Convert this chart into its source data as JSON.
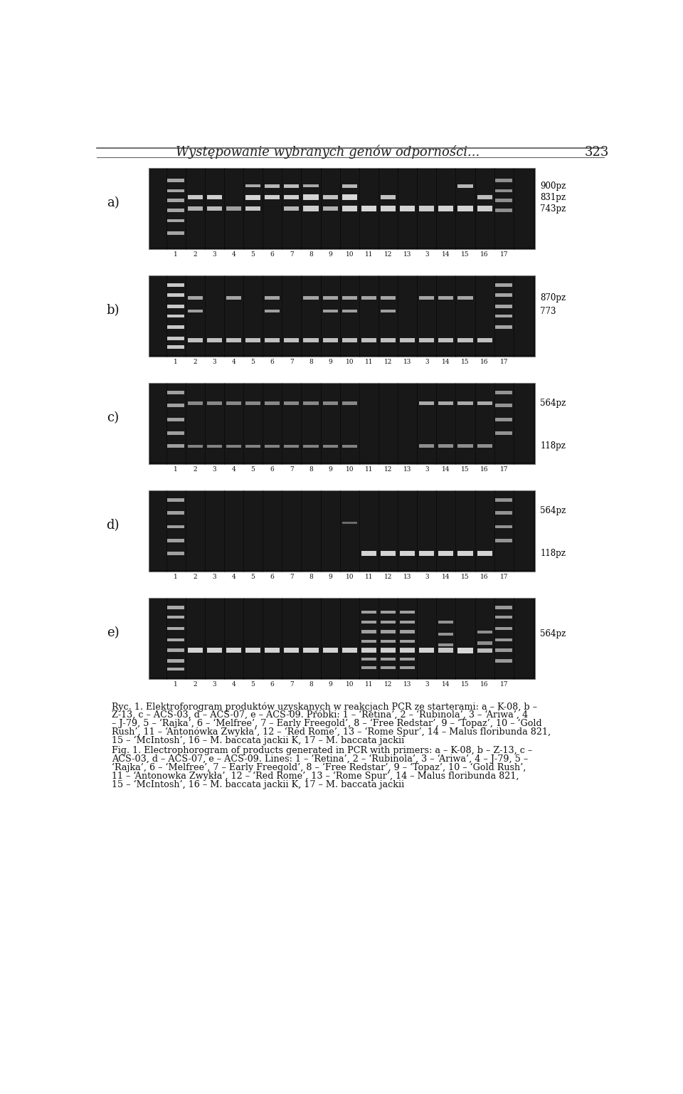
{
  "page_title": "Występowanie wybranych genów odporności...",
  "page_number": "323",
  "panel_labels": [
    "a)",
    "b)",
    "c)",
    "d)",
    "e)"
  ],
  "lane_numbers": [
    "1",
    "2",
    "3",
    "4",
    "5",
    "6",
    "7",
    "8",
    "9",
    "10",
    "11",
    "12",
    "13",
    "3",
    "14",
    "15",
    "16",
    "17"
  ],
  "panel_a_markers": [
    "900pz",
    "831pz",
    "743pz"
  ],
  "panel_b_markers": [
    "870pz",
    "773"
  ],
  "panel_c_markers": [
    "564pz",
    "118pz"
  ],
  "panel_d_markers": [
    "564pz",
    "118pz"
  ],
  "panel_e_markers": [
    "564pz"
  ],
  "bg_color": "#ffffff",
  "gel_bg": "#111111",
  "title_color": "#222222",
  "header_line_color": "#555555",
  "caption_pl_lines": [
    "Ryc. 1. Elektroforogram produktów uzyskanych w reakcjach PCR ze starterami: a – K-08, b –",
    "Z-13, c – ACS-03, d – ACS-07, e – ACS-09. Próbki: 1 – ‘Retina’, 2 – ‘Rubinola’, 3 – ‘Ariwa’, 4",
    "– J-79, 5 – ‘Rajka’, 6 – ‘Melfree’, 7 – Early Freegold’, 8 – ‘Free Redstar’, 9 – ‘Topaz’, 10 – ‘Gold",
    "Rush’, 11 – ‘Antonówka Zwykła’, 12 – ‘Red Rome’, 13 – ‘Rome Spur’, 14 – Malus floribunda 821,",
    "15 – ‘McIntosh’, 16 – M. baccata jackii K, 17 – M. baccata jackii"
  ],
  "caption_en_lines": [
    "Fig. 1. Electrophorogram of products generated in PCR with primers: a – K-08, b – Z-13, c –",
    "ACS-03, d – ACS-07, e – ACS-09. Lines: 1 – ‘Retina’, 2 – ‘Rubinola’, 3 – ‘Ariwa’, 4 – J-79, 5 –",
    "‘Rajka’, 6 – ‘Melfree’, 7 – Early Freegold’, 8 – ‘Free Redstar’, 9 – ‘Topaz’, 10 – ‘Gold Rush’,",
    "11 – ‘Antonowka Zwykła’, 12 – ‘Red Rome’, 13 – ‘Rome Spur’, 14 – Malus floribunda 821,",
    "15 – ‘McIntosh’, 16 – M. baccata jackii K, 17 – M. baccata jackii"
  ]
}
